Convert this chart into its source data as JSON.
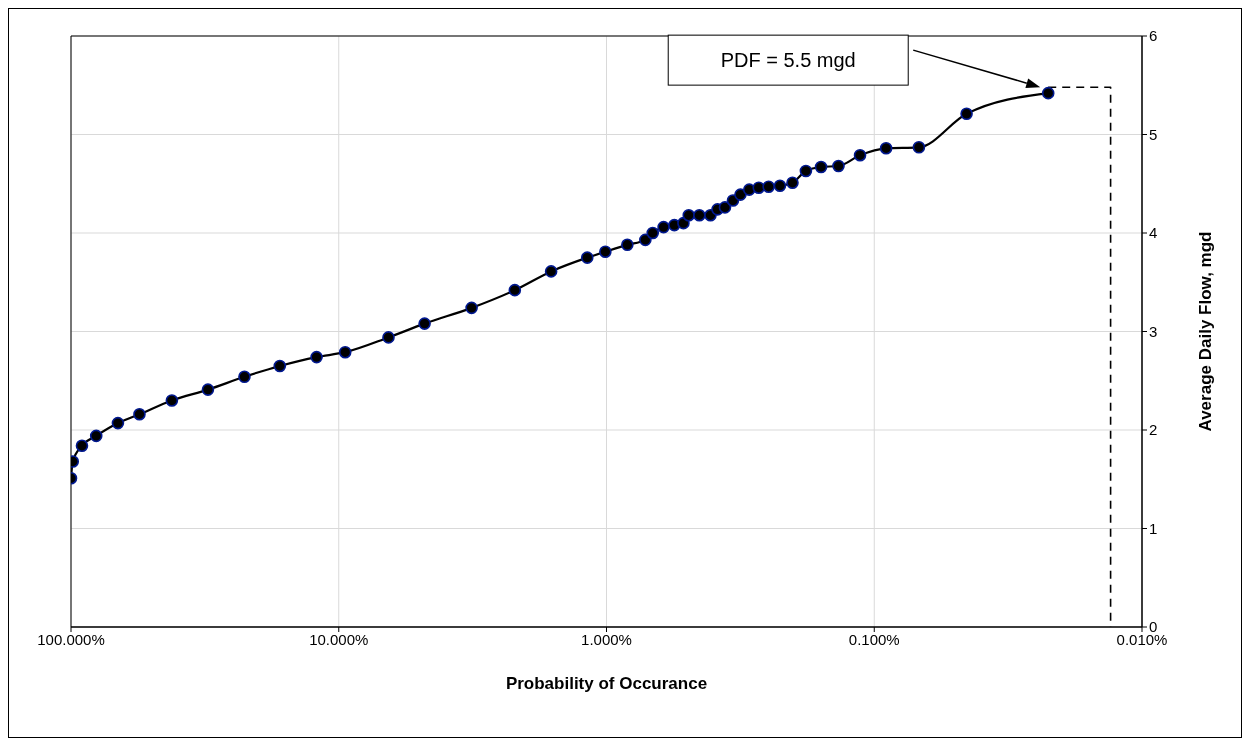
{
  "chart_data": {
    "type": "line",
    "xlabel": "Probability of Occurance",
    "ylabel": "Average Daily Flow, mgd",
    "log": "x",
    "xlim": [
      100,
      0.01
    ],
    "ylim": [
      0,
      6
    ],
    "xticks": [
      {
        "value": 100,
        "label": "100.000%"
      },
      {
        "value": 10,
        "label": "10.000%"
      },
      {
        "value": 1,
        "label": "1.000%"
      },
      {
        "value": 0.1,
        "label": "0.100%"
      },
      {
        "value": 0.01,
        "label": "0.010%"
      }
    ],
    "yticks": [
      0,
      1,
      2,
      3,
      4,
      5,
      6
    ],
    "grid": true,
    "legend": false,
    "marker": "circle",
    "series": [
      {
        "color": "#00188f",
        "x": [
          100,
          98.5,
          91,
          80.5,
          66.8,
          55.5,
          42,
          30.8,
          22.5,
          16.6,
          12.1,
          9.46,
          6.52,
          4.78,
          3.19,
          2.2,
          1.61,
          1.18,
          1.01,
          0.836,
          0.716,
          0.672,
          0.612,
          0.558,
          0.516,
          0.493,
          0.45,
          0.409,
          0.385,
          0.361,
          0.337,
          0.316,
          0.293,
          0.27,
          0.248,
          0.225,
          0.202,
          0.18,
          0.158,
          0.136,
          0.113,
          0.0903,
          0.0681,
          0.0452,
          0.0224
        ],
        "values": [
          1.51,
          1.68,
          1.84,
          1.94,
          2.07,
          2.16,
          2.3,
          2.41,
          2.54,
          2.65,
          2.74,
          2.79,
          2.94,
          3.08,
          3.24,
          3.42,
          3.61,
          3.75,
          3.81,
          3.88,
          3.93,
          4,
          4.06,
          4.08,
          4.1,
          4.18,
          4.18,
          4.18,
          4.24,
          4.26,
          4.33,
          4.39,
          4.44,
          4.46,
          4.47,
          4.48,
          4.51,
          4.63,
          4.67,
          4.68,
          4.79,
          4.86,
          4.87,
          5.21,
          5.42
        ]
      },
      {
        "type": "line",
        "color": "#000000",
        "line_style": "dashed",
        "marker": "none",
        "x": [
          0.0224,
          0.0131,
          0.0131
        ],
        "values": [
          5.48,
          5.48,
          0
        ]
      }
    ],
    "annotations": [
      "PDF = 5.5 mgd"
    ]
  }
}
